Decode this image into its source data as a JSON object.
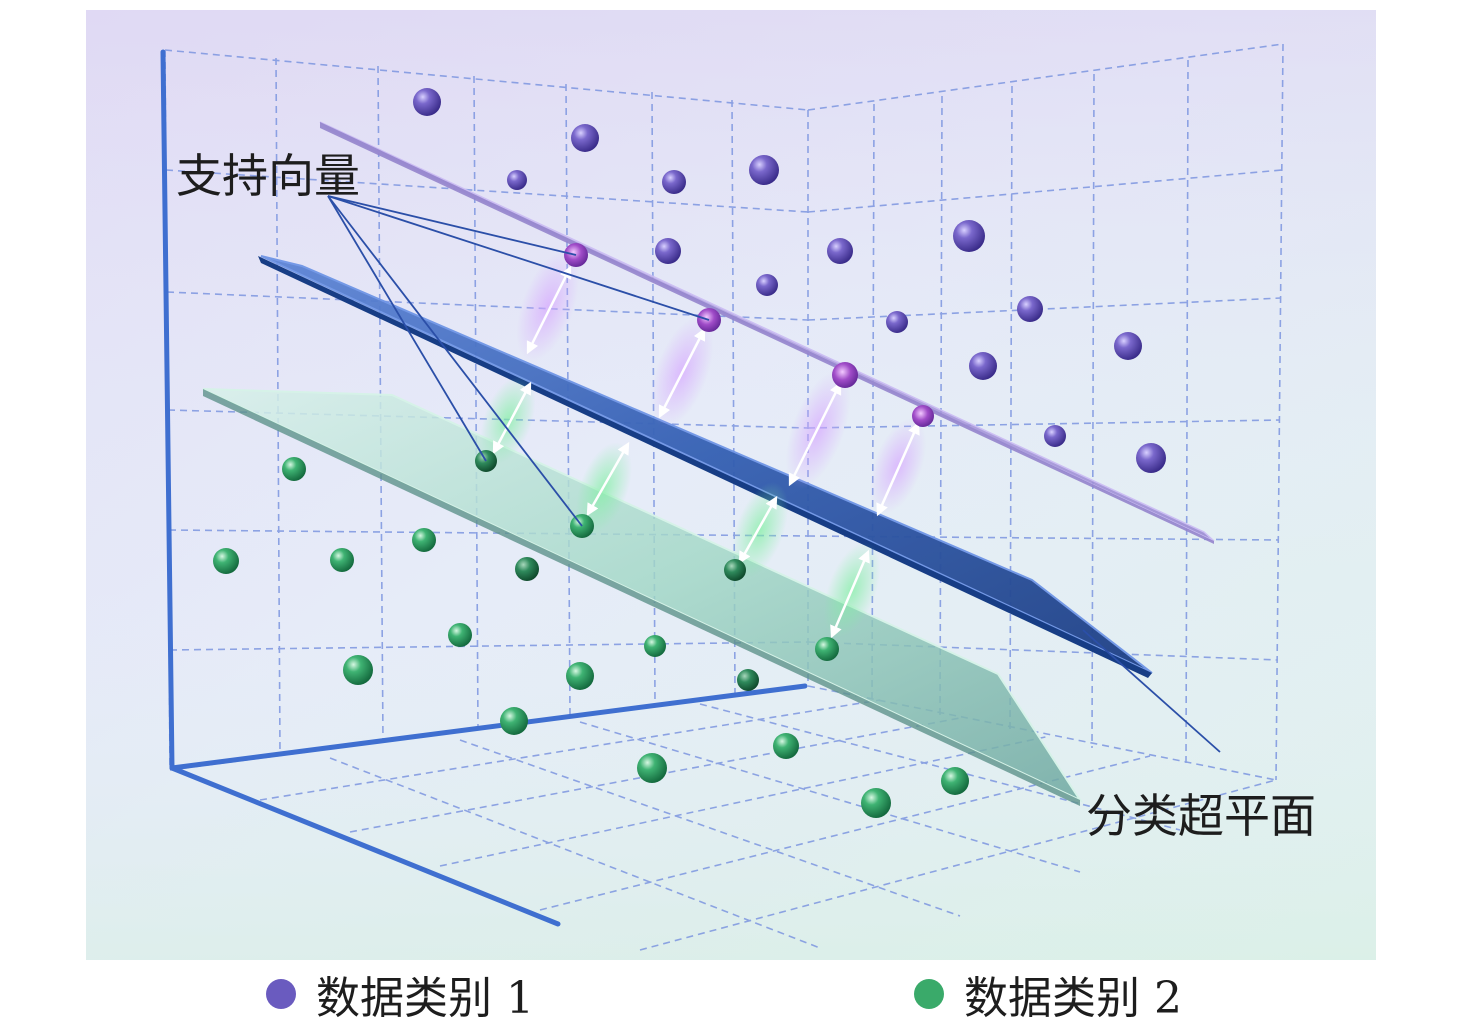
{
  "annotations": {
    "support_vectors": "支持向量",
    "hyperplane": "分类超平面"
  },
  "legend": [
    {
      "label": "数据类别 1",
      "color": "#6a5bbf"
    },
    {
      "label": "数据类别 2",
      "color": "#3aaa6a"
    }
  ],
  "colors": {
    "axis": "#3f6fd0",
    "grid": "#7d96e0",
    "class1": "#6a5bbf",
    "class2": "#3aaa6a",
    "hyperplane": "#2a4f9c",
    "margin_plane_1": "#a897dc",
    "margin_plane_2": "#9fd6c4"
  }
}
